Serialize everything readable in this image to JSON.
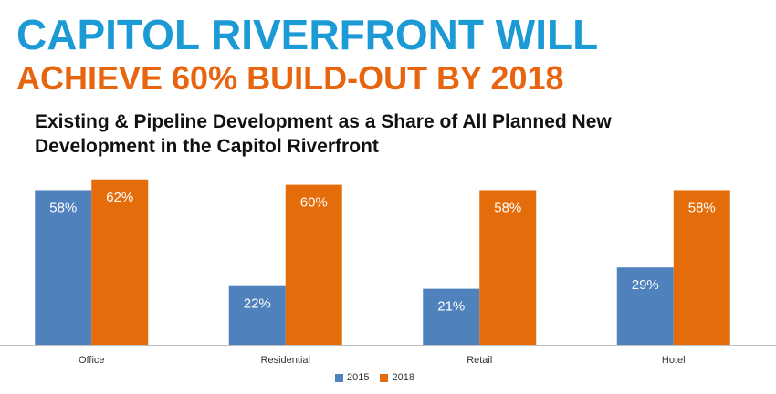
{
  "headline": {
    "line1": "CAPITOL RIVERFRONT WILL",
    "line2": "ACHIEVE 60% BUILD-OUT BY 2018"
  },
  "colors": {
    "headline_blue": "#1c9ad6",
    "headline_orange": "#e8650f",
    "series_2015": "#4f81bd",
    "series_2018": "#e46c0a"
  },
  "chart_data": {
    "type": "bar",
    "title": "Existing & Pipeline Development as a Share of All Planned New Development in the Capitol Riverfront",
    "xlabel": "",
    "ylabel": "",
    "ylim": [
      0,
      65
    ],
    "grid": false,
    "legend_position": "bottom",
    "categories": [
      "Office",
      "Residential",
      "Retail",
      "Hotel"
    ],
    "series": [
      {
        "name": "2015",
        "values": [
          58,
          22,
          21,
          29
        ],
        "labels": [
          "58%",
          "22%",
          "21%",
          "29%"
        ]
      },
      {
        "name": "2018",
        "values": [
          62,
          60,
          58,
          58
        ],
        "labels": [
          "62%",
          "60%",
          "58%",
          "58%"
        ]
      }
    ]
  }
}
